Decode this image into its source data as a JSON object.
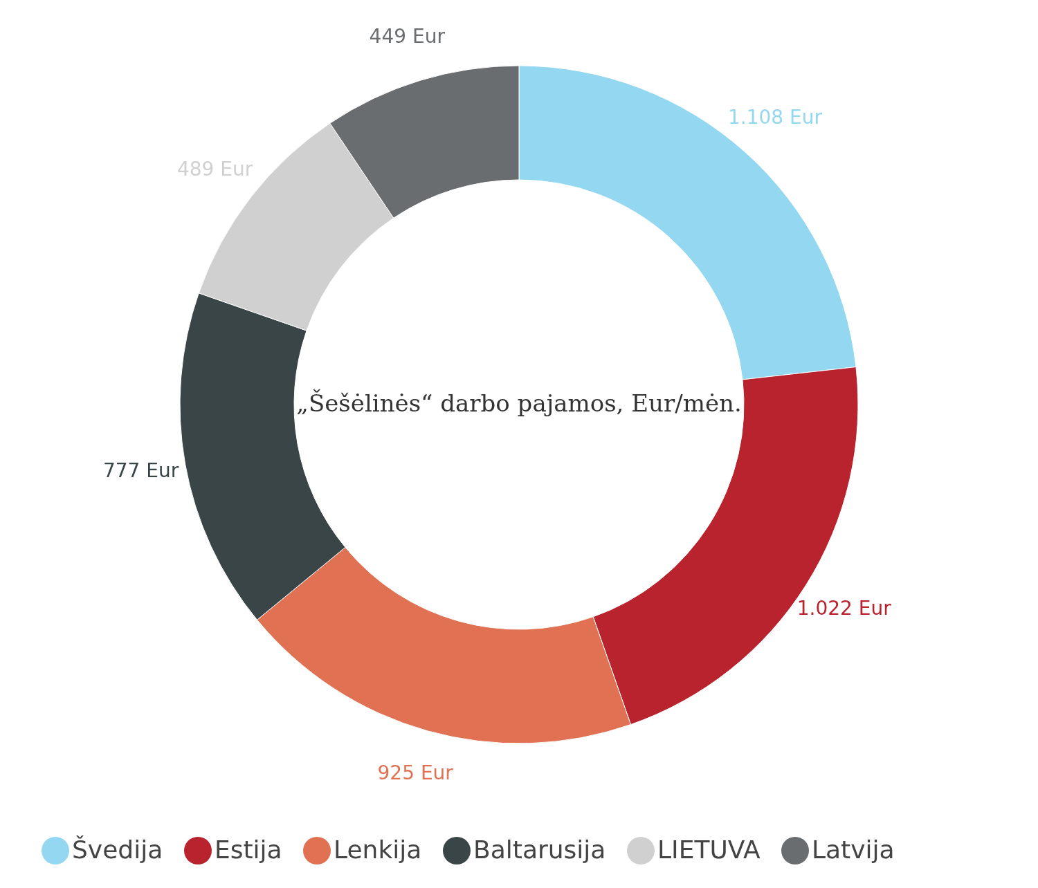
{
  "chart_data": {
    "type": "donut",
    "title": "„Šešėlinės“ darbo pajamos, Eur/mėn.",
    "categories": [
      "Švedija",
      "Estija",
      "Lenkija",
      "Baltarusija",
      "LIETUVA",
      "Latvija"
    ],
    "values": [
      1108,
      1022,
      925,
      777,
      489,
      449
    ],
    "value_labels": [
      "1.108 Eur",
      "1.022 Eur",
      "925 Eur",
      "777 Eur",
      "489 Eur",
      "449 Eur"
    ],
    "colors": [
      "#93d7f0",
      "#b8232e",
      "#e07253",
      "#394547",
      "#d0d0d0",
      "#6a6d70"
    ],
    "legend": "bottom"
  }
}
